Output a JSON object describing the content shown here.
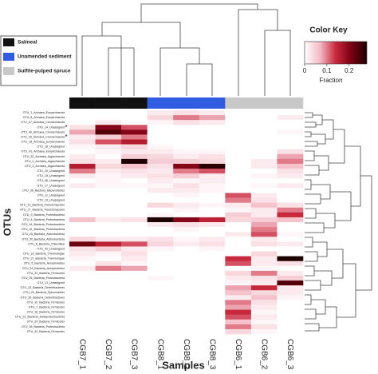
{
  "chart_data": {
    "type": "heatmap",
    "xlabel": "Samples",
    "ylabel": "OTUs",
    "groups": [
      {
        "name": "Salmeal",
        "color": "#111111",
        "categories": [
          "CGB7_1",
          "CGB7_2",
          "CGB7_3"
        ]
      },
      {
        "name": "Unamended sediment",
        "color": "#2f5ce0",
        "categories": [
          "CGB8_1",
          "CGB8_2",
          "CGB8_3"
        ]
      },
      {
        "name": "Sulfite-pulped spruce",
        "color": "#c8c8c8",
        "categories": [
          "CGB6_1",
          "CGB6_2",
          "CGB6_3"
        ]
      }
    ],
    "rows": [
      "OTU_1_Archaea_Euryarchaeota",
      "OTU_8_Archaea_Euryarchaeota",
      "OTU_47_Archaea_Crenarchaeota",
      "OTU_14_Unassigned",
      "OTU_40_Archaea_Crenarchaeota",
      "OTU_39_Archaea_Crenarchaeota",
      "OTU_28_Archaea_Euryarchaeota",
      "OTU_18_Unassigned",
      "OTU_41_Archaea_Euryarchaeota",
      "OTU_32_Archaea_Aigarchaeota",
      "OTU_2_Archaea_Aigarchaeota",
      "OTU_3_Archaea_Aigarchaeota",
      "OTU_20_Unassigned",
      "OTU_15_Unassigned",
      "OTU_46_Unassigned",
      "OTU_17_Unassigned",
      "OTU_38_Bacteria_Bacteroidetes",
      "OTU_11_Unassigned",
      "OTU_19_Unassigned",
      "OTU_12_Bacteria_Planctomycetes",
      "OTU_27_Bacteria_Planctomycetes",
      "OTU_9_Bacteria_Proteobacteria",
      "OTU_4_Bacteria_Proteobacteria",
      "OTU_44_Bacteria_Proteobacteria",
      "OTU_31_Bacteria_Proteobacteria",
      "OTU_25_Bacteria_Actinobacteria",
      "OTU_30_Bacteria_Actinobacteria",
      "OTU_6_Bacteria_Chloroflexi",
      "OTU_42_Unassigned",
      "OTU_33_Bacteria_Thermotogae",
      "OTU_37_Bacteria_Thermotogae",
      "OTU_5_Bacteria_Aerophobetes",
      "OTU_34_Bacteria_Aerophobetes",
      "OTU_23_Bacteria_Firmicutes",
      "OTU_26_Bacteria_Proteobacteria",
      "OTU_13_Unassigned",
      "OTU_22_Bacteria_Deferribacteres",
      "OTU_29_Bacteria_Spirochaetes",
      "OTU_35_Bacteria_Deferribacteres",
      "OTU_10_Bacteria_Firmicutes",
      "OTU_7_Bacteria_Firmicutes",
      "OTU_16_Bacteria_Firmicutes",
      "OTU_21_Bacteria_Deltaproteobacteria",
      "OTU_24_Bacteria_Firmicutes",
      "OTU_36_Bacteria_Proteobacteria",
      "OTU_43_Bacteria_Firmicutes"
    ],
    "values": [
      [
        0,
        0,
        0,
        0.02,
        0.03,
        0.02,
        0,
        0,
        0
      ],
      [
        0,
        0,
        0,
        0.04,
        0.1,
        0.08,
        0,
        0,
        0.02
      ],
      [
        0,
        0.02,
        0,
        0.01,
        0.03,
        0.02,
        0,
        0,
        0
      ],
      [
        0.03,
        0.2,
        0.12,
        0,
        0,
        0,
        0,
        0,
        0
      ],
      [
        0.08,
        0.24,
        0.2,
        0,
        0,
        0,
        0,
        0,
        0.01
      ],
      [
        0.02,
        0.05,
        0.1,
        0,
        0,
        0,
        0,
        0,
        0
      ],
      [
        0.03,
        0.12,
        0.16,
        0,
        0,
        0,
        0,
        0,
        0
      ],
      [
        0.01,
        0.02,
        0.04,
        0.01,
        0,
        0,
        0,
        0,
        0
      ],
      [
        0,
        0.01,
        0.02,
        0.02,
        0.01,
        0.01,
        0,
        0,
        0.03
      ],
      [
        0.02,
        0,
        0.05,
        0.04,
        0.02,
        0.03,
        0,
        0,
        0.08
      ],
      [
        0.03,
        0.02,
        0.28,
        0.05,
        0.05,
        0.04,
        0,
        0.02,
        0.1
      ],
      [
        0.16,
        0.04,
        0.06,
        0.03,
        0.2,
        0.27,
        0,
        0.02,
        0.06
      ],
      [
        0.1,
        0.02,
        0.03,
        0.02,
        0.1,
        0.12,
        0,
        0,
        0.03
      ],
      [
        0.02,
        0.01,
        0.02,
        0.03,
        0.05,
        0.02,
        0,
        0.01,
        0.02
      ],
      [
        0,
        0.01,
        0,
        0.02,
        0.01,
        0.02,
        0,
        0,
        0
      ],
      [
        0.02,
        0.01,
        0.01,
        0.01,
        0.03,
        0.01,
        0,
        0.01,
        0.02
      ],
      [
        0,
        0,
        0,
        0.02,
        0.02,
        0.01,
        0,
        0,
        0
      ],
      [
        0,
        0,
        0,
        0,
        0.01,
        0,
        0.12,
        0.02,
        0
      ],
      [
        0,
        0,
        0,
        0,
        0,
        0,
        0.1,
        0.03,
        0
      ],
      [
        0,
        0,
        0,
        0.04,
        0.02,
        0.01,
        0.02,
        0.06,
        0.03
      ],
      [
        0,
        0,
        0,
        0,
        0.01,
        0,
        0.01,
        0.02,
        0.1
      ],
      [
        0,
        0,
        0,
        0.01,
        0,
        0,
        0.05,
        0.02,
        0.14
      ],
      [
        0.06,
        0.02,
        0.03,
        0.28,
        0.2,
        0.15,
        0.04,
        0.05,
        0.06
      ],
      [
        0,
        0,
        0,
        0.02,
        0.03,
        0.02,
        0,
        0.08,
        0
      ],
      [
        0,
        0,
        0,
        0,
        0.01,
        0,
        0,
        0.1,
        0
      ],
      [
        0,
        0,
        0,
        0,
        0,
        0,
        0.02,
        0.12,
        0.01
      ],
      [
        0.04,
        0.02,
        0.02,
        0.03,
        0.01,
        0.02,
        0,
        0.02,
        0
      ],
      [
        0.22,
        0.15,
        0.12,
        0.04,
        0.02,
        0.03,
        0,
        0.03,
        0.02
      ],
      [
        0.03,
        0.05,
        0.02,
        0.01,
        0,
        0.01,
        0,
        0,
        0
      ],
      [
        0.02,
        0.01,
        0.03,
        0,
        0,
        0,
        0,
        0.04,
        0
      ],
      [
        0.01,
        0,
        0.02,
        0,
        0,
        0,
        0.14,
        0.02,
        0.28
      ],
      [
        0,
        0.03,
        0.01,
        0,
        0,
        0,
        0.12,
        0.02,
        0.03
      ],
      [
        0.02,
        0.1,
        0.08,
        0,
        0,
        0,
        0,
        0.01,
        0
      ],
      [
        0,
        0,
        0,
        0,
        0,
        0,
        0.04,
        0.1,
        0.02
      ],
      [
        0,
        0,
        0,
        0.01,
        0,
        0,
        0.02,
        0.03,
        0.05
      ],
      [
        0,
        0,
        0,
        0,
        0,
        0,
        0.01,
        0.02,
        0.24
      ],
      [
        0,
        0,
        0,
        0,
        0,
        0,
        0.08,
        0.14,
        0.02
      ],
      [
        0,
        0,
        0,
        0,
        0,
        0,
        0.06,
        0.04,
        0.02
      ],
      [
        0,
        0,
        0,
        0,
        0,
        0,
        0.02,
        0.06,
        0.01
      ],
      [
        0,
        0,
        0,
        0,
        0,
        0,
        0.1,
        0.03,
        0
      ],
      [
        0,
        0,
        0,
        0,
        0,
        0,
        0.08,
        0.02,
        0
      ],
      [
        0,
        0,
        0,
        0,
        0,
        0,
        0.14,
        0.01,
        0
      ],
      [
        0,
        0,
        0,
        0,
        0,
        0,
        0.12,
        0.02,
        0
      ],
      [
        0,
        0,
        0,
        0,
        0,
        0,
        0.06,
        0.01,
        0
      ],
      [
        0,
        0,
        0,
        0,
        0,
        0,
        0.1,
        0.03,
        0
      ],
      [
        0,
        0,
        0,
        0,
        0,
        0,
        0.04,
        0.01,
        0
      ]
    ],
    "color_key": {
      "title": "Color Key",
      "label": "Fraction",
      "zlim": [
        0,
        0.28
      ],
      "zticks": [
        0,
        0.1,
        0.2
      ],
      "colors": [
        "#ffffff",
        "#f3b9c4",
        "#c8283c",
        "#7a0012",
        "#1e0000"
      ]
    },
    "annotations": [
      "*",
      "*"
    ]
  }
}
